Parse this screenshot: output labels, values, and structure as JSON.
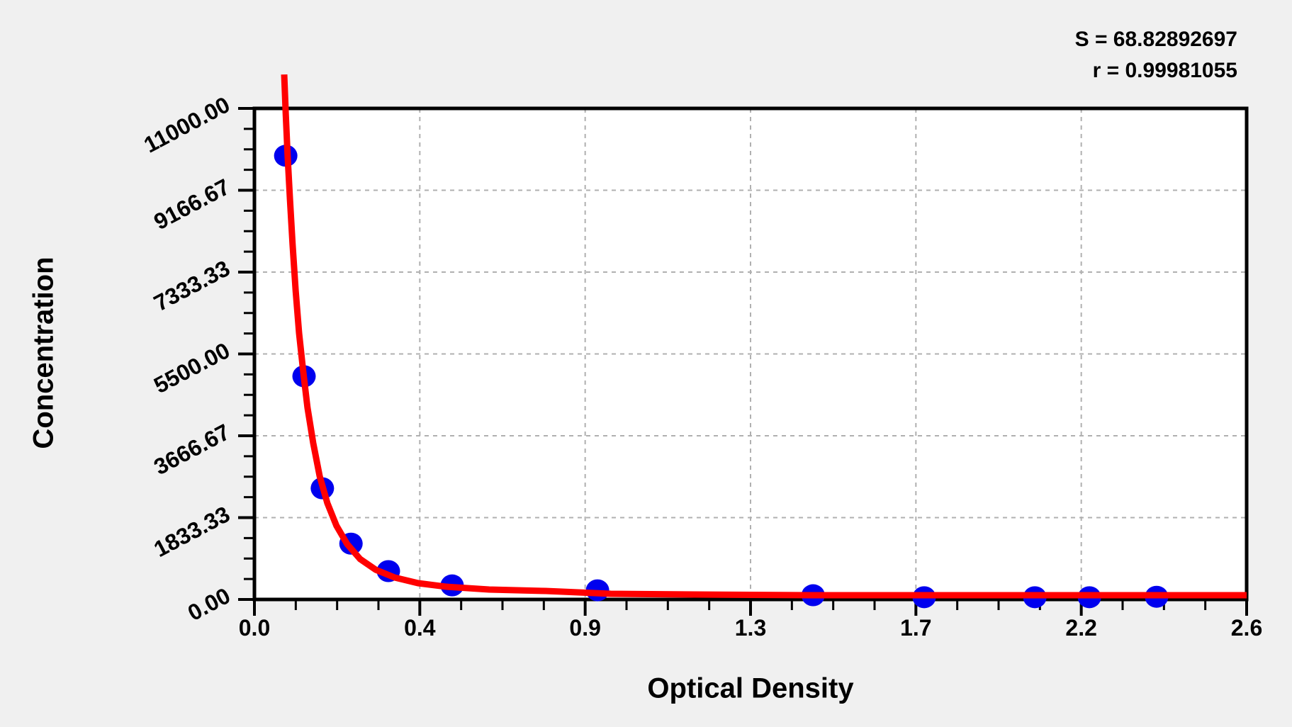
{
  "page": {
    "background_color": "#f0f0f0"
  },
  "annotation": {
    "s_line": "S = 68.82892697",
    "r_line": "r = 0.99981055"
  },
  "chart_data": {
    "type": "scatter",
    "title": "",
    "xlabel": "Optical Density",
    "ylabel": "Concentration",
    "xlim": [
      0,
      2.6
    ],
    "ylim": [
      0,
      11000
    ],
    "x_tick_labels": [
      "0.0",
      "0.4",
      "0.9",
      "1.3",
      "1.7",
      "2.2",
      "2.6"
    ],
    "y_tick_labels": [
      "0.00",
      "1833.33",
      "3666.67",
      "5500.00",
      "7333.33",
      "9166.67",
      "11000.00"
    ],
    "minor_ticks_per_major": 4,
    "grid": "dashed lines at major ticks, both axes",
    "legend_position": "none",
    "fit_stats": {
      "S": "68.82892697",
      "r": "0.99981055"
    },
    "series": [
      {
        "name": "standard-points",
        "type": "scatter",
        "marker": "circle",
        "points": [
          [
            0.082,
            9940
          ],
          [
            0.13,
            5000
          ],
          [
            0.178,
            2490
          ],
          [
            0.253,
            1250
          ],
          [
            0.351,
            635
          ],
          [
            0.518,
            315
          ],
          [
            0.899,
            205
          ],
          [
            1.464,
            95
          ],
          [
            1.755,
            50
          ],
          [
            2.045,
            50
          ],
          [
            2.188,
            50
          ],
          [
            2.364,
            60
          ]
        ]
      },
      {
        "name": "fitted-curve",
        "type": "line",
        "points": [
          [
            0.078,
            11760
          ],
          [
            0.082,
            10890
          ],
          [
            0.087,
            9935
          ],
          [
            0.093,
            8980
          ],
          [
            0.1,
            7950
          ],
          [
            0.108,
            6920
          ],
          [
            0.117,
            5965
          ],
          [
            0.128,
            5095
          ],
          [
            0.139,
            4300
          ],
          [
            0.154,
            3505
          ],
          [
            0.171,
            2760
          ],
          [
            0.191,
            2160
          ],
          [
            0.215,
            1650
          ],
          [
            0.243,
            1240
          ],
          [
            0.277,
            905
          ],
          [
            0.318,
            665
          ],
          [
            0.368,
            490
          ],
          [
            0.429,
            365
          ],
          [
            0.503,
            285
          ],
          [
            0.615,
            222
          ],
          [
            0.763,
            190
          ],
          [
            0.934,
            127
          ],
          [
            1.153,
            111
          ],
          [
            1.469,
            95
          ],
          [
            1.933,
            95
          ],
          [
            2.6,
            95
          ]
        ]
      }
    ],
    "colors": {
      "point": "#0000ee",
      "curve": "#ff0000",
      "grid": "#b0b0b0",
      "frame": "#000000",
      "plot_background": "#ffffff",
      "page_background": "#f0f0f0"
    }
  }
}
